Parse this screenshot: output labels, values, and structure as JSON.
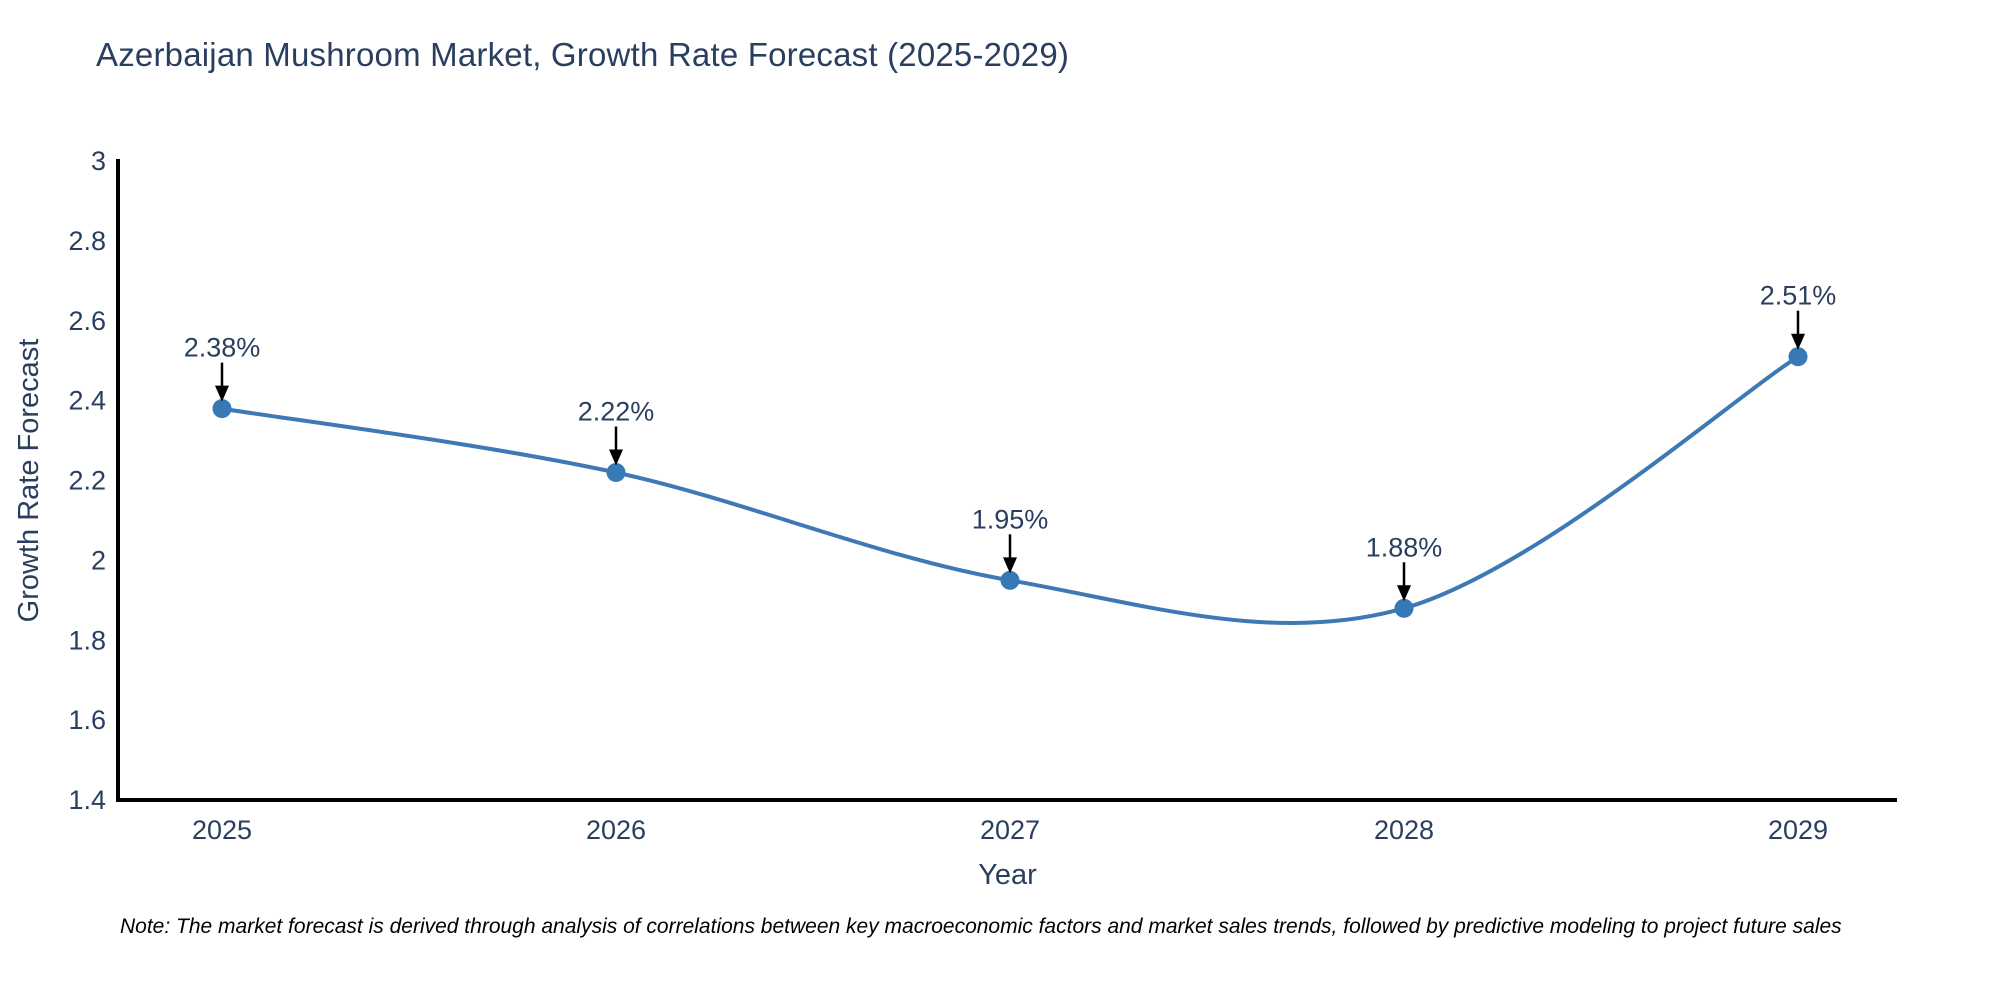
{
  "chart_data": {
    "type": "line",
    "title": "Azerbaijan Mushroom Market, Growth Rate Forecast (2025-2029)",
    "x": [
      "2025",
      "2026",
      "2027",
      "2028",
      "2029"
    ],
    "series": [
      {
        "name": "Growth Rate Forecast",
        "values": [
          2.38,
          2.22,
          1.95,
          1.88,
          2.51
        ],
        "point_labels": [
          "2.38%",
          "2.22%",
          "1.95%",
          "1.88%",
          "2.51%"
        ]
      }
    ],
    "xlabel": "Year",
    "ylabel": "Growth Rate Forecast",
    "ylim": [
      1.4,
      3
    ],
    "yticks": [
      1.4,
      1.6,
      1.8,
      2,
      2.2,
      2.4,
      2.6,
      2.8,
      3
    ],
    "line_shape": "spline",
    "grid": false,
    "legend_position": "none",
    "colors": {
      "line": "#3e79b4",
      "marker": "#3779b5",
      "axis": "#000000",
      "text": "#2a3f5f",
      "arrow": "#000000",
      "note": "#000000",
      "background": "#ffffff"
    }
  },
  "note": {
    "text": "Note: The market forecast is derived through analysis of correlations between key macroeconomic factors and market sales trends, followed by predictive modeling to project future sales"
  }
}
